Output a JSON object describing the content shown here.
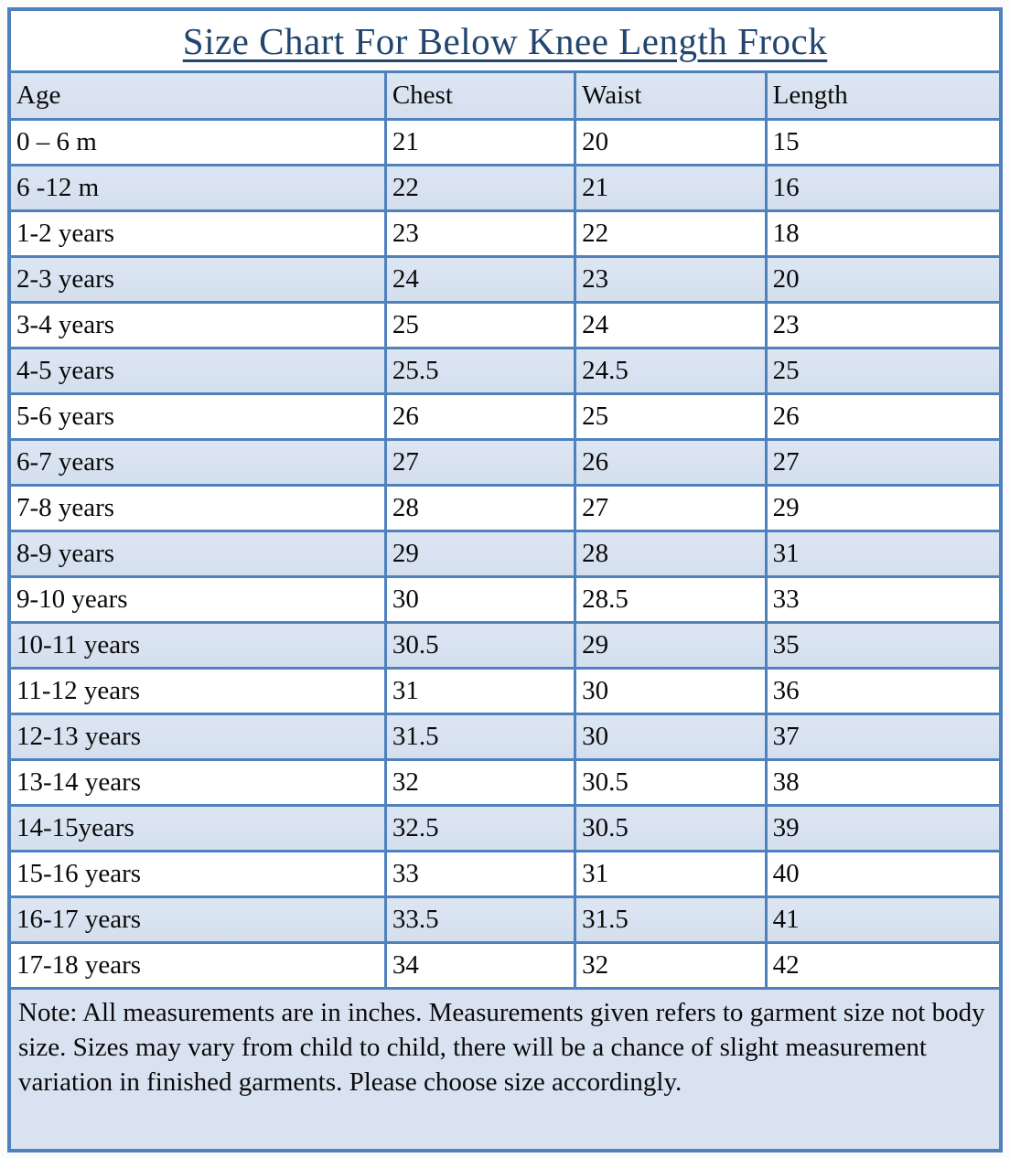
{
  "title": "Size Chart For Below Knee Length Frock",
  "table": {
    "headers": [
      "Age",
      "Chest",
      "Waist",
      "Length"
    ],
    "rows": [
      {
        "age": "0 – 6 m",
        "chest": "21",
        "waist": "20",
        "length": "15"
      },
      {
        "age": "6 -12 m",
        "chest": "22",
        "waist": "21",
        "length": "16"
      },
      {
        "age": "1-2 years",
        "chest": "23",
        "waist": "22",
        "length": "18"
      },
      {
        "age": "2-3 years",
        "chest": "24",
        "waist": "23",
        "length": "20"
      },
      {
        "age": "3-4 years",
        "chest": "25",
        "waist": "24",
        "length": "23"
      },
      {
        "age": "4-5 years",
        "chest": "25.5",
        "waist": "24.5",
        "length": "25"
      },
      {
        "age": "5-6 years",
        "chest": "26",
        "waist": "25",
        "length": "26"
      },
      {
        "age": "6-7 years",
        "chest": "27",
        "waist": "26",
        "length": "27"
      },
      {
        "age": "7-8 years",
        "chest": "28",
        "waist": "27",
        "length": "29"
      },
      {
        "age": "8-9 years",
        "chest": "29",
        "waist": "28",
        "length": "31"
      },
      {
        "age": "9-10 years",
        "chest": "30",
        "waist": "28.5",
        "length": "33"
      },
      {
        "age": "10-11 years",
        "chest": "30.5",
        "waist": "29",
        "length": "35"
      },
      {
        "age": "11-12 years",
        "chest": "31",
        "waist": "30",
        "length": "36"
      },
      {
        "age": "12-13 years",
        "chest": "31.5",
        "waist": "30",
        "length": "37"
      },
      {
        "age": "13-14 years",
        "chest": "32",
        "waist": "30.5",
        "length": "38"
      },
      {
        "age": "14-15years",
        "chest": "32.5",
        "waist": "30.5",
        "length": "39"
      },
      {
        "age": "15-16 years",
        "chest": "33",
        "waist": "31",
        "length": "40"
      },
      {
        "age": "16-17 years",
        "chest": "33.5",
        "waist": "31.5",
        "length": "41"
      },
      {
        "age": "17-18 years",
        "chest": "34",
        "waist": "32",
        "length": "42"
      }
    ]
  },
  "note": "Note: All measurements are in inches. Measurements given refers to garment size not body size. Sizes may vary from child to child, there will be a chance of slight measurement variation in finished garments. Please choose size accordingly.",
  "colors": {
    "border": "#4f81bd",
    "row_shading": "#d9e2f1",
    "title_text": "#21456e",
    "body_text": "#0a0a0a"
  }
}
